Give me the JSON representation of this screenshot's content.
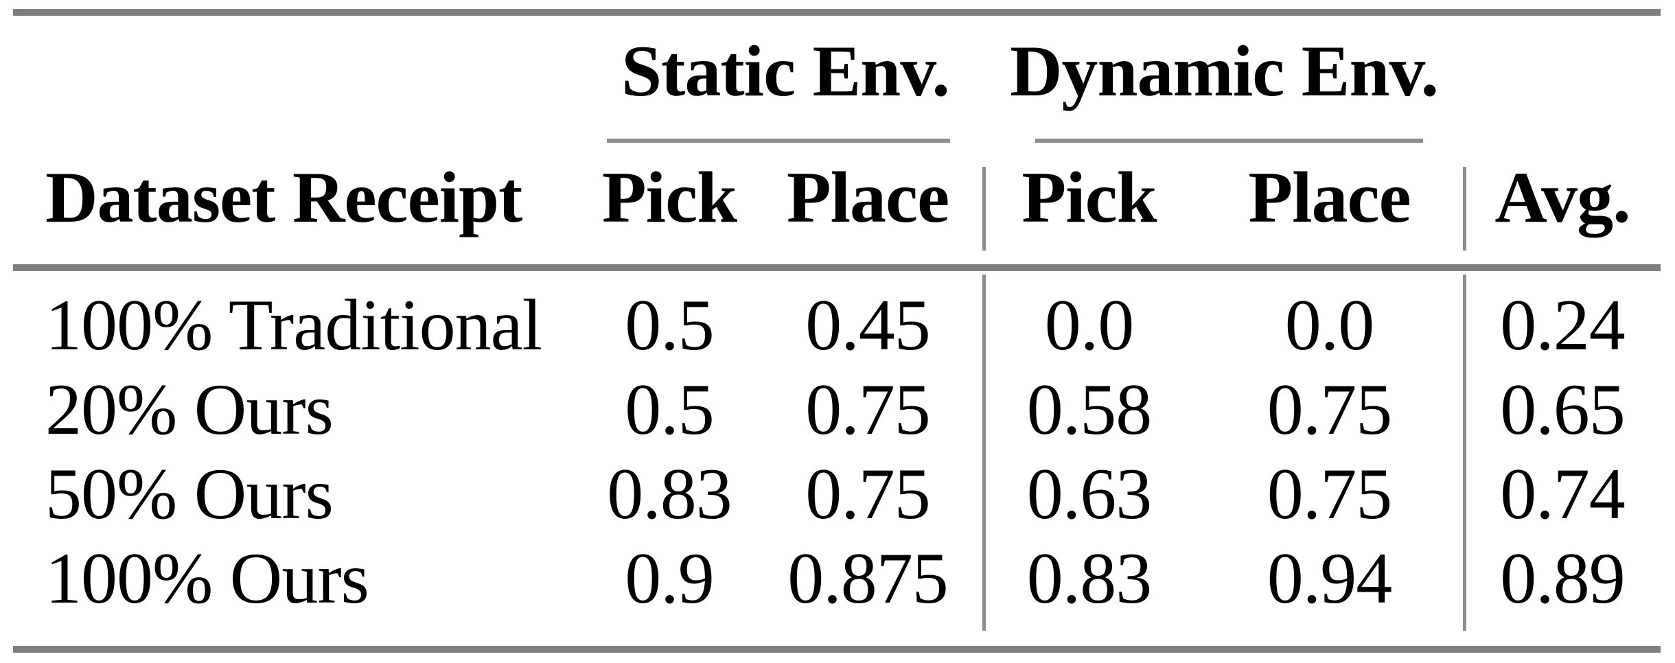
{
  "figure": {
    "kind": "paper-results-table",
    "background_color": "#ffffff",
    "text_color": "#000000",
    "thick_rule_color": "#7f7f7f",
    "thin_rule_color": "#8d8d8d"
  },
  "table": {
    "group_headers": [
      {
        "label": "Static Env."
      },
      {
        "label": "Dynamic Env."
      }
    ],
    "columns": [
      "Dataset Receipt",
      "Pick",
      "Place",
      "Pick",
      "Place",
      "Avg."
    ],
    "rows": [
      {
        "cells": [
          "100% Traditional",
          "0.5",
          "0.45",
          "0.0",
          "0.0",
          "0.24"
        ]
      },
      {
        "cells": [
          "20% Ours",
          "0.5",
          "0.75",
          "0.58",
          "0.75",
          "0.65"
        ]
      },
      {
        "cells": [
          "50% Ours",
          "0.83",
          "0.75",
          "0.63",
          "0.75",
          "0.74"
        ]
      },
      {
        "cells": [
          "100% Ours",
          "0.9",
          "0.875",
          "0.83",
          "0.94",
          "0.89"
        ]
      }
    ]
  }
}
